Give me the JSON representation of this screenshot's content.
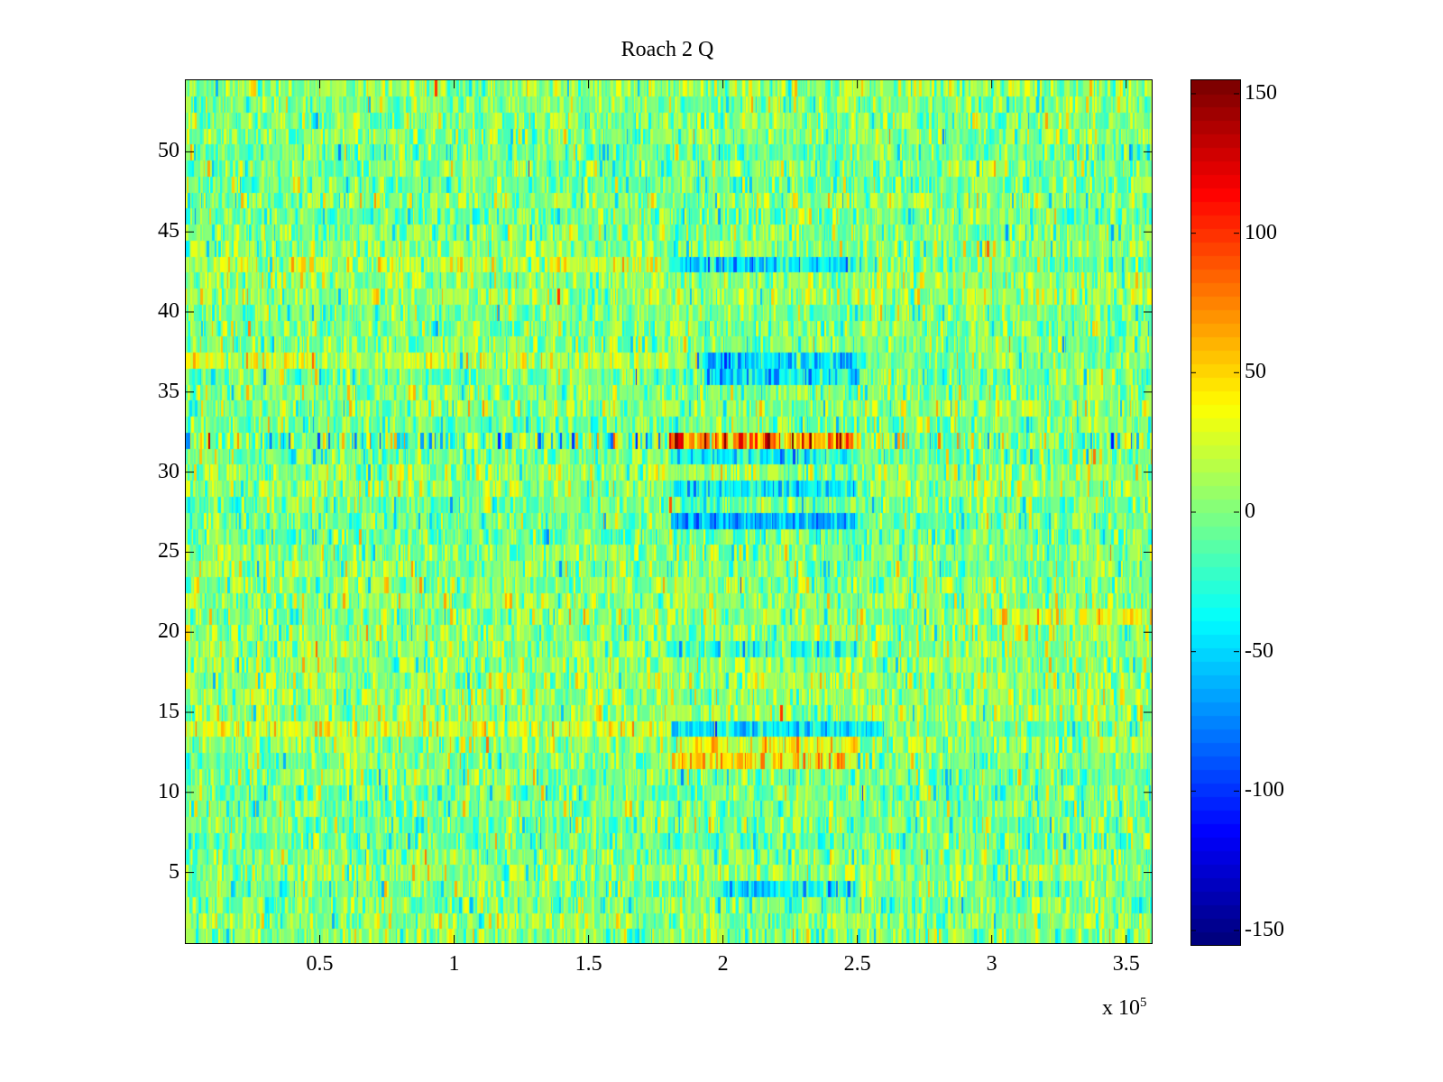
{
  "chart_data": {
    "type": "heatmap",
    "title": "Roach 2 Q",
    "xlabel": "",
    "ylabel": "",
    "x_multiplier_label": "x 10",
    "x_multiplier_exponent": "5",
    "xlim": [
      0,
      3.6
    ],
    "ylim": [
      0.5,
      54.5
    ],
    "rows": 54,
    "x_ticks": [
      0.5,
      1,
      1.5,
      2,
      2.5,
      3,
      3.5
    ],
    "x_tick_labels": [
      "0.5",
      "1",
      "1.5",
      "2",
      "2.5",
      "3",
      "3.5"
    ],
    "y_ticks": [
      5,
      10,
      15,
      20,
      25,
      30,
      35,
      40,
      45,
      50
    ],
    "y_tick_labels": [
      "5",
      "10",
      "15",
      "20",
      "25",
      "30",
      "35",
      "40",
      "45",
      "50"
    ],
    "colormap": "jet",
    "clim": [
      -155,
      155
    ],
    "colorbar_ticks": [
      150,
      100,
      50,
      0,
      -50,
      -100,
      -150
    ],
    "colorbar_tick_labels": [
      "150",
      "100",
      "50",
      "0",
      "-50",
      "-100",
      "-150"
    ],
    "background_mean": 0,
    "background_noise_std": 22,
    "features": [
      {
        "row": 32,
        "x_range": [
          0,
          1.8
        ],
        "mean": -10,
        "std": 40
      },
      {
        "row": 32,
        "x_range": [
          1.8,
          2.5
        ],
        "mean": 75,
        "std": 40
      },
      {
        "row": 32,
        "x_range": [
          2.5,
          3.6
        ],
        "mean": 0,
        "std": 35
      },
      {
        "row": 31,
        "x_range": [
          1.8,
          2.5
        ],
        "mean": -35,
        "std": 22
      },
      {
        "row": 29,
        "x_range": [
          1.8,
          2.5
        ],
        "mean": -40,
        "std": 22
      },
      {
        "row": 27,
        "x_range": [
          1.8,
          2.5
        ],
        "mean": -65,
        "std": 22
      },
      {
        "row": 36,
        "x_range": [
          1.9,
          2.5
        ],
        "mean": -40,
        "std": 22
      },
      {
        "row": 37,
        "x_range": [
          1.9,
          2.5
        ],
        "mean": -45,
        "std": 22
      },
      {
        "row": 43,
        "x_range": [
          1.8,
          2.5
        ],
        "mean": -45,
        "std": 22
      },
      {
        "row": 37,
        "x_range": [
          0,
          1.8
        ],
        "mean": 18,
        "std": 22
      },
      {
        "row": 43,
        "x_range": [
          0,
          1.8
        ],
        "mean": 15,
        "std": 22
      },
      {
        "row": 14,
        "x_range": [
          0,
          1.8
        ],
        "mean": 25,
        "std": 22
      },
      {
        "row": 14,
        "x_range": [
          1.8,
          2.6
        ],
        "mean": -45,
        "std": 22
      },
      {
        "row": 13,
        "x_range": [
          1.8,
          2.5
        ],
        "mean": 35,
        "std": 22
      },
      {
        "row": 12,
        "x_range": [
          1.8,
          2.5
        ],
        "mean": 40,
        "std": 25
      },
      {
        "row": 4,
        "x_range": [
          2.0,
          2.5
        ],
        "mean": -40,
        "std": 22
      },
      {
        "row": 19,
        "x_range": [
          1.8,
          2.5
        ],
        "mean": -25,
        "std": 22
      },
      {
        "row": 21,
        "x_range": [
          3.0,
          3.6
        ],
        "mean": 20,
        "std": 22
      }
    ]
  }
}
